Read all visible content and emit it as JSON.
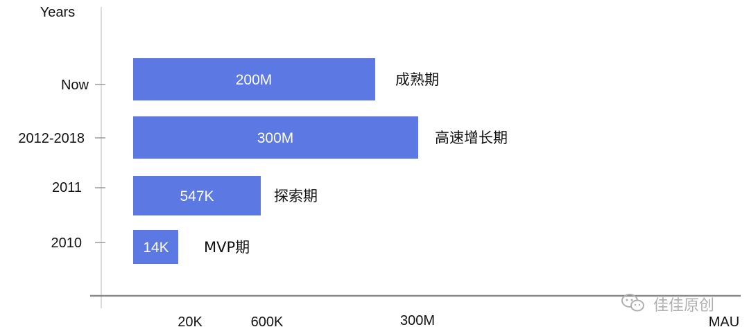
{
  "chart_data": {
    "type": "bar",
    "orientation": "horizontal",
    "ylabel": "Years",
    "xlabel": "MAU",
    "categories": [
      "Now",
      "2012-2018",
      "2011",
      "2010"
    ],
    "values": [
      "200M",
      "300M",
      "547K",
      "14K"
    ],
    "phases": [
      "成熟期",
      "高速增长期",
      "探索期",
      "MVP期"
    ],
    "x_ticks": [
      "20K",
      "600K",
      "300M"
    ],
    "bar_color": "#5b78e3"
  },
  "watermark": {
    "text": "佳佳原创",
    "icon": "wechat-icon"
  }
}
